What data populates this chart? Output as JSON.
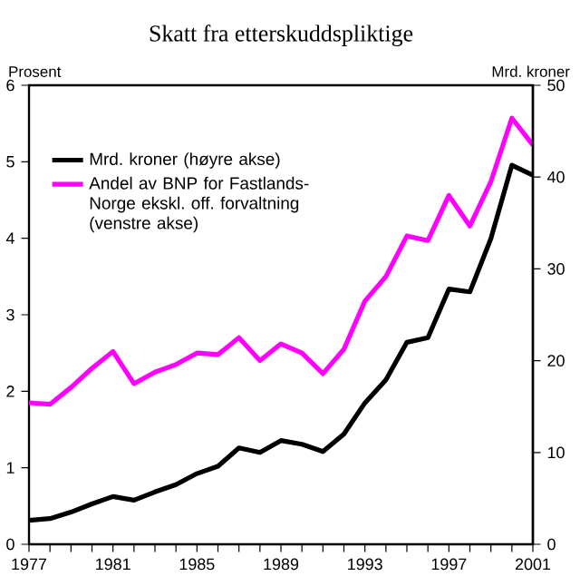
{
  "chart_data": {
    "type": "line",
    "title": "Skatt fra etterskuddspliktige",
    "ylabel": "Prosent",
    "y2label": "Mrd. kroner",
    "x": [
      1977,
      1978,
      1979,
      1980,
      1981,
      1982,
      1983,
      1984,
      1985,
      1986,
      1987,
      1988,
      1989,
      1990,
      1991,
      1992,
      1993,
      1994,
      1995,
      1996,
      1997,
      1998,
      1999,
      2000,
      2001
    ],
    "series": [
      {
        "name": "Mrd. kroner (høyre akse)",
        "color": "#000000",
        "axis": "y2",
        "values": [
          2.6,
          2.8,
          3.5,
          4.4,
          5.2,
          4.8,
          5.7,
          6.5,
          7.7,
          8.5,
          10.5,
          10,
          11.3,
          10.9,
          10.1,
          12,
          15.4,
          17.9,
          22,
          22.5,
          27.8,
          27.5,
          33.3,
          41.3,
          40.2
        ]
      },
      {
        "name": "Andel av BNP for Fastlands-Norge ekskl. off. forvaltning (venstre akse)",
        "color": "#ff00ff",
        "values": [
          1.85,
          1.83,
          2.05,
          2.3,
          2.52,
          2.1,
          2.25,
          2.35,
          2.5,
          2.48,
          2.7,
          2.4,
          2.62,
          2.5,
          2.23,
          2.55,
          3.18,
          3.5,
          4.03,
          3.97,
          4.56,
          4.16,
          4.74,
          5.57,
          5.22
        ]
      }
    ],
    "xlim": [
      1977,
      2001
    ],
    "xticks": [
      1977,
      {
        "value": 1978,
        "label": null
      },
      {
        "value": 1979,
        "label": null
      },
      {
        "value": 1980,
        "label": null
      },
      1981,
      {
        "value": 1982,
        "label": null
      },
      {
        "value": 1983,
        "label": null
      },
      {
        "value": 1984,
        "label": null
      },
      1985,
      {
        "value": 1986,
        "label": null
      },
      {
        "value": 1987,
        "label": null
      },
      {
        "value": 1988,
        "label": null
      },
      1989,
      {
        "value": 1990,
        "label": null
      },
      {
        "value": 1991,
        "label": null
      },
      {
        "value": 1992,
        "label": null
      },
      1993,
      {
        "value": 1994,
        "label": null
      },
      {
        "value": 1995,
        "label": null
      },
      {
        "value": 1996,
        "label": null
      },
      1997,
      {
        "value": 1998,
        "label": null
      },
      {
        "value": 1999,
        "label": null
      },
      {
        "value": 2000,
        "label": null
      },
      2001
    ],
    "ylim": [
      0,
      6
    ],
    "yticks": [
      0,
      1,
      2,
      3,
      4,
      5,
      6
    ],
    "y2lim": [
      0,
      50
    ],
    "y2ticks": [
      0,
      10,
      20,
      30,
      40,
      50
    ],
    "legend": "top left"
  }
}
